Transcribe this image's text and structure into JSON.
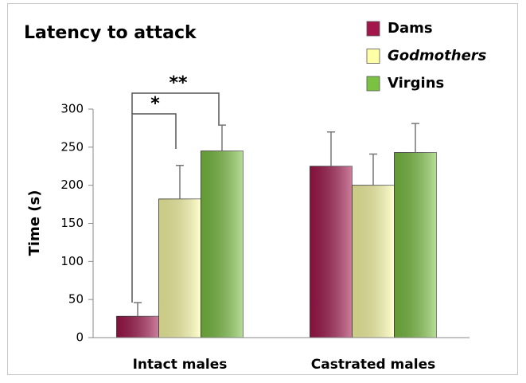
{
  "chart_data": {
    "type": "bar",
    "title": "Latency to attack",
    "ylabel": "Time (s)",
    "categories": [
      "Intact males",
      "Castrated males"
    ],
    "series": [
      {
        "name": "Dams",
        "color": "#a3164c",
        "values": [
          28,
          225
        ],
        "errors": [
          18,
          45
        ]
      },
      {
        "name": "Godmothers",
        "color": "#ffffa8",
        "values": [
          182,
          200
        ],
        "errors": [
          44,
          41
        ]
      },
      {
        "name": "Virgins",
        "color": "#7cc242",
        "values": [
          245,
          243
        ],
        "errors": [
          34,
          38
        ]
      }
    ],
    "ylim": [
      0,
      300
    ],
    "yticks": [
      0,
      50,
      100,
      150,
      200,
      250,
      300
    ],
    "annotations": [
      "*",
      "**"
    ],
    "legend": "upper right"
  }
}
